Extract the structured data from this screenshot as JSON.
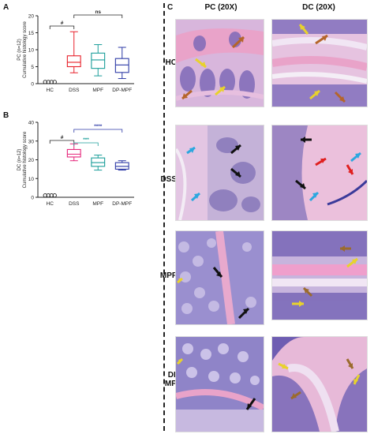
{
  "panels": {
    "a": "A",
    "b": "B",
    "c": "C"
  },
  "micrographs": {
    "columns": [
      "PC (20X)",
      "DC (20X)"
    ],
    "rows": [
      "HC",
      "DSS",
      "MPF",
      "DP-MPF"
    ]
  },
  "chart_data": [
    {
      "type": "box",
      "panel": "A",
      "ylabel_lines": [
        "PC (n=12)",
        "Cumulative histology score"
      ],
      "ylim": [
        0,
        20
      ],
      "yticks": [
        0,
        5,
        10,
        15,
        20
      ],
      "categories": [
        "HC",
        "DSS",
        "MPF",
        "DP-MPF"
      ],
      "colors": [
        "#222222",
        "#e8202a",
        "#1b9e9a",
        "#2d3aa6"
      ],
      "hc_points": [
        0.5,
        0.5,
        0.5,
        0.5
      ],
      "boxes": [
        {
          "category": "DSS",
          "min": 3.2,
          "q1": 5.0,
          "median": 6.3,
          "q3": 8.2,
          "max": 15.3
        },
        {
          "category": "MPF",
          "min": 2.3,
          "q1": 4.5,
          "median": 7.0,
          "q3": 9.0,
          "max": 11.5
        },
        {
          "category": "DP-MPF",
          "min": 1.5,
          "q1": 3.3,
          "median": 5.5,
          "q3": 7.4,
          "max": 10.7
        }
      ],
      "annotations": [
        {
          "text": "#",
          "from": "HC",
          "to": "DSS",
          "color": "#222222"
        },
        {
          "text": "ns",
          "from": "DSS",
          "to": "DP-MPF",
          "color": "#222222"
        }
      ]
    },
    {
      "type": "box",
      "panel": "B",
      "ylabel_lines": [
        "DC (n=12)",
        "Cumulative histology score"
      ],
      "ylim": [
        0,
        40
      ],
      "yticks": [
        0,
        10,
        20,
        30,
        40
      ],
      "categories": [
        "HC",
        "DSS",
        "MPF",
        "DP-MPF"
      ],
      "colors": [
        "#222222",
        "#e6257a",
        "#1b9e9a",
        "#2d3aa6"
      ],
      "hc_points": [
        1,
        1,
        1,
        1
      ],
      "boxes": [
        {
          "category": "DSS",
          "min": 19.5,
          "q1": 21.5,
          "median": 23.0,
          "q3": 25.5,
          "max": 28.5
        },
        {
          "category": "MPF",
          "min": 14.5,
          "q1": 16.5,
          "median": 18.5,
          "q3": 21.0,
          "max": 22.5
        },
        {
          "category": "DP-MPF",
          "min": 14.5,
          "q1": 15.0,
          "median": 16.5,
          "q3": 18.5,
          "max": 19.5
        }
      ],
      "annotations": [
        {
          "text": "#",
          "from": "HC",
          "to": "DSS",
          "color": "#222222"
        },
        {
          "text": "***",
          "from": "DSS",
          "to": "MPF",
          "color": "#1b9e9a"
        },
        {
          "text": "****",
          "from": "DSS",
          "to": "DP-MPF",
          "color": "#2d3aa6"
        }
      ]
    }
  ]
}
